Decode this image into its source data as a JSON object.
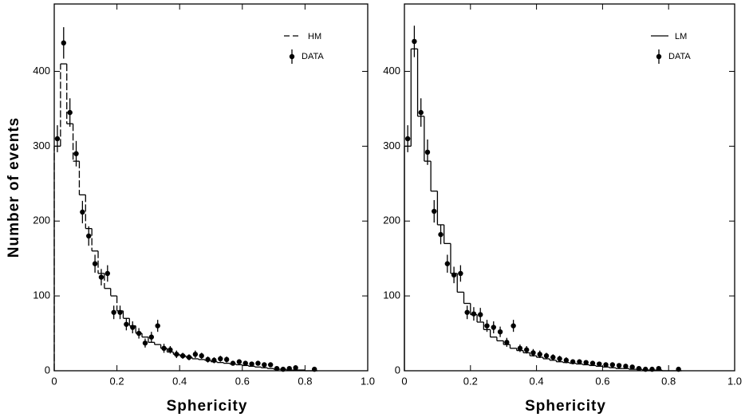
{
  "chart_data": [
    {
      "type": "histogram",
      "x_label": "Sphericity",
      "y_label": "Number of events",
      "xlim": [
        0,
        1
      ],
      "ylim": [
        0,
        490
      ],
      "xticks": [
        0,
        0.2,
        0.4,
        0.6,
        0.8,
        {
          "value": 1,
          "label": "1.0"
        }
      ],
      "yticks": [
        0,
        100,
        200,
        300,
        400
      ],
      "color": "#000000",
      "line_style": "dashed",
      "bins": [
        0,
        0.02,
        0.04,
        0.06,
        0.08,
        0.1,
        0.12,
        0.14,
        0.16,
        0.18,
        0.2,
        0.22,
        0.24,
        0.26,
        0.28,
        0.3,
        0.32,
        0.34,
        0.36,
        0.38,
        0.4,
        0.42,
        0.44,
        0.46,
        0.48,
        0.5,
        0.52,
        0.54,
        0.56,
        0.58,
        0.6,
        0.62,
        0.64,
        0.66,
        0.68,
        0.7,
        0.72,
        0.74,
        0.76,
        0.78,
        0.8,
        0.82,
        0.84
      ],
      "histogram": {
        "name": "HM",
        "values": [
          300,
          410,
          330,
          280,
          235,
          190,
          160,
          130,
          110,
          100,
          80,
          70,
          60,
          50,
          45,
          38,
          35,
          30,
          25,
          22,
          20,
          18,
          16,
          15,
          14,
          12,
          11,
          10,
          9,
          8,
          7,
          6,
          5,
          4,
          3,
          2,
          2,
          1,
          1,
          1,
          0,
          0
        ]
      },
      "points": {
        "name": "DATA",
        "x": [
          0.01,
          0.03,
          0.05,
          0.07,
          0.09,
          0.11,
          0.13,
          0.15,
          0.17,
          0.19,
          0.21,
          0.23,
          0.25,
          0.27,
          0.29,
          0.31,
          0.33,
          0.35,
          0.37,
          0.39,
          0.41,
          0.43,
          0.45,
          0.47,
          0.49,
          0.51,
          0.53,
          0.55,
          0.57,
          0.59,
          0.61,
          0.63,
          0.65,
          0.67,
          0.69,
          0.71,
          0.73,
          0.75,
          0.77,
          0.83
        ],
        "values": [
          310,
          438,
          345,
          290,
          212,
          180,
          143,
          125,
          130,
          78,
          78,
          62,
          58,
          50,
          37,
          45,
          60,
          30,
          28,
          22,
          20,
          18,
          22,
          20,
          15,
          14,
          16,
          15,
          10,
          12,
          10,
          9,
          10,
          8,
          8,
          3,
          2,
          3,
          4,
          2
        ],
        "errors": [
          18,
          21,
          19,
          17,
          15,
          13,
          12,
          11,
          11,
          9,
          9,
          8,
          8,
          7,
          6,
          7,
          8,
          6,
          5,
          5,
          4,
          4,
          5,
          4,
          4,
          4,
          4,
          4,
          3,
          3,
          3,
          3,
          3,
          3,
          3,
          2,
          1,
          2,
          2,
          1
        ]
      }
    },
    {
      "type": "histogram",
      "x_label": "Sphericity",
      "xlim": [
        0,
        1
      ],
      "ylim": [
        0,
        490
      ],
      "xticks": [
        0,
        0.2,
        0.4,
        0.6,
        0.8,
        {
          "value": 1,
          "label": "1.0"
        }
      ],
      "yticks": [
        0,
        100,
        200,
        300,
        400
      ],
      "color": "#000000",
      "line_style": "solid",
      "bins": [
        0,
        0.02,
        0.04,
        0.06,
        0.08,
        0.1,
        0.12,
        0.14,
        0.16,
        0.18,
        0.2,
        0.22,
        0.24,
        0.26,
        0.28,
        0.3,
        0.32,
        0.34,
        0.36,
        0.38,
        0.4,
        0.42,
        0.44,
        0.46,
        0.48,
        0.5,
        0.52,
        0.54,
        0.56,
        0.58,
        0.6,
        0.62,
        0.64,
        0.66,
        0.68,
        0.7,
        0.72,
        0.74,
        0.76,
        0.78,
        0.8,
        0.82,
        0.84
      ],
      "histogram": {
        "name": "LM",
        "values": [
          300,
          430,
          340,
          280,
          240,
          195,
          170,
          130,
          105,
          90,
          75,
          65,
          55,
          45,
          40,
          35,
          30,
          27,
          24,
          20,
          18,
          16,
          14,
          12,
          11,
          10,
          9,
          8,
          7,
          6,
          5,
          4,
          3,
          3,
          2,
          2,
          1,
          1,
          1,
          0,
          0,
          0
        ]
      },
      "points": {
        "name": "DATA",
        "x": [
          0.01,
          0.03,
          0.05,
          0.07,
          0.09,
          0.11,
          0.13,
          0.15,
          0.17,
          0.19,
          0.21,
          0.23,
          0.25,
          0.27,
          0.29,
          0.31,
          0.33,
          0.35,
          0.37,
          0.39,
          0.41,
          0.43,
          0.45,
          0.47,
          0.49,
          0.51,
          0.53,
          0.55,
          0.57,
          0.59,
          0.61,
          0.63,
          0.65,
          0.67,
          0.69,
          0.71,
          0.73,
          0.75,
          0.77,
          0.83
        ],
        "values": [
          310,
          440,
          345,
          292,
          213,
          182,
          143,
          128,
          130,
          78,
          76,
          75,
          60,
          58,
          52,
          38,
          60,
          30,
          28,
          24,
          22,
          20,
          18,
          16,
          14,
          12,
          12,
          11,
          10,
          9,
          8,
          8,
          7,
          6,
          5,
          3,
          2,
          2,
          3,
          2
        ],
        "errors": [
          18,
          21,
          19,
          17,
          15,
          13,
          12,
          11,
          11,
          9,
          9,
          9,
          8,
          8,
          7,
          6,
          8,
          5,
          5,
          5,
          5,
          4,
          4,
          4,
          4,
          3,
          3,
          3,
          3,
          3,
          3,
          3,
          3,
          2,
          2,
          2,
          1,
          1,
          2,
          1
        ]
      }
    }
  ]
}
